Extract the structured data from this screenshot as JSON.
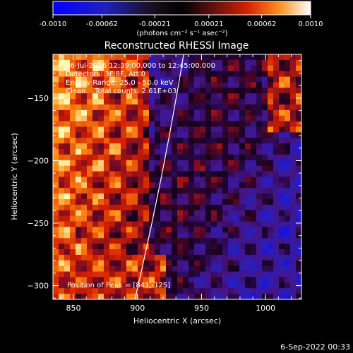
{
  "chart_data": {
    "type": "heatmap",
    "title": "Reconstructed RHESSI Image",
    "xlabel": "Heliocentric X (arcsec)",
    "ylabel": "Heliocentric Y (arcsec)",
    "xlim": [
      834,
      1028
    ],
    "ylim": [
      -311,
      -115
    ],
    "x_ticks": [
      850,
      900,
      950,
      1000
    ],
    "y_ticks": [
      -150,
      -200,
      -250,
      -300
    ],
    "colorbar": {
      "ticks": [
        "-0.0010",
        "-0.00062",
        "-0.00021",
        "0.00021",
        "0.00062",
        "0.0010"
      ],
      "units_label": "(photons cm⁻² s⁻¹ asec⁻²)",
      "range": [
        -0.001,
        0.001
      ]
    },
    "annotations": [
      "26-Jul-2016 12:39:00.000 to 12:45:00.000",
      "Detectors: 3F 8F, Att 0",
      "Energy Range: 25.0 - 50.0 keV",
      "Clean    Total counts: 2.61E+03"
    ],
    "peak_label": "Position of Peak = [841,-125]",
    "limb_curve": {
      "x": [
        898,
        936
      ],
      "y": [
        -311,
        -115
      ]
    },
    "grid": false
  },
  "footer": {
    "date_stamp": "6-Sep-2022 00:33"
  }
}
